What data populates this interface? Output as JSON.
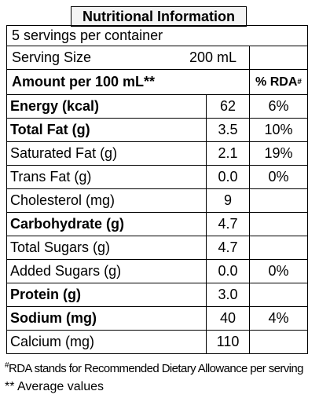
{
  "title": "Nutritional Information",
  "servings": "5 servings per container",
  "serving_size": {
    "label": "Serving Size",
    "value": "200 mL"
  },
  "header": {
    "amount": "Amount per 100 mL**",
    "rda": "% RDA",
    "rda_mark": "#"
  },
  "rows": [
    {
      "name": "Energy (kcal)",
      "amount": "62",
      "rda": "6%",
      "bold": true
    },
    {
      "name": "Total Fat (g)",
      "amount": "3.5",
      "rda": "10%",
      "bold": true
    },
    {
      "name": "Saturated Fat (g)",
      "amount": "2.1",
      "rda": "19%",
      "bold": false
    },
    {
      "name": "Trans Fat (g)",
      "amount": "0.0",
      "rda": "0%",
      "bold": false
    },
    {
      "name": "Cholesterol (mg)",
      "amount": "9",
      "rda": null,
      "bold": false
    },
    {
      "name": "Carbohydrate (g)",
      "amount": "4.7",
      "rda": null,
      "bold": true
    },
    {
      "name": "Total Sugars (g)",
      "amount": "4.7",
      "rda": null,
      "bold": false
    },
    {
      "name": "Added Sugars (g)",
      "amount": "0.0",
      "rda": "0%",
      "bold": false
    },
    {
      "name": "Protein (g)",
      "amount": "3.0",
      "rda": null,
      "bold": true
    },
    {
      "name": "Sodium (mg)",
      "amount": "40",
      "rda": "4%",
      "bold": true
    },
    {
      "name": "Calcium (mg)",
      "amount": "110",
      "rda": null,
      "bold": false
    }
  ],
  "footnotes": {
    "mark": "#",
    "rda": "RDA stands for Recommended Dietary Allowance per serving",
    "average": "** Average values"
  }
}
